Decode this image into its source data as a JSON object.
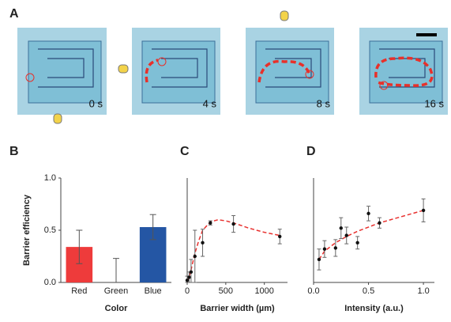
{
  "panel_a": {
    "label": "A",
    "frames": [
      "0 s",
      "4 s",
      "8 s",
      "16 s"
    ]
  },
  "chart_data": [
    {
      "type": "bar",
      "panel": "B",
      "ylabel": "Barrier efficiency",
      "xlabel": "Color",
      "categories": [
        "Red",
        "Green",
        "Blue"
      ],
      "values": [
        0.34,
        0,
        0.53
      ],
      "errors": [
        0.16,
        0.23,
        0.12
      ],
      "colors": [
        "#ee3b3b",
        "#2e9e3e",
        "#2456a4"
      ],
      "ylim": [
        0,
        1
      ],
      "yticks": [
        {
          "value": 0,
          "label": "0.0"
        },
        {
          "value": 0.5,
          "label": "0.5"
        },
        {
          "value": 1,
          "label": "1.0"
        }
      ]
    },
    {
      "type": "scatter",
      "panel": "C",
      "xlabel": "Barrier width (µm)",
      "x": [
        0,
        25,
        50,
        100,
        200,
        300,
        600,
        1200
      ],
      "values": [
        0.02,
        0.05,
        0.1,
        0.25,
        0.38,
        0.57,
        0.56,
        0.44
      ],
      "errors": [
        0.04,
        0.05,
        0.12,
        0.25,
        0.13,
        0.02,
        0.08,
        0.07
      ],
      "color": "#111111",
      "xlim": [
        0,
        1300
      ],
      "ylim": [
        0,
        1
      ],
      "xticks": [
        0,
        500,
        1000
      ],
      "fit": {
        "x": [
          0,
          50,
          100,
          150,
          200,
          300,
          400,
          500,
          600,
          800,
          1000,
          1200
        ],
        "values": [
          0.0,
          0.12,
          0.28,
          0.4,
          0.5,
          0.58,
          0.6,
          0.59,
          0.57,
          0.52,
          0.48,
          0.45
        ],
        "color": "#e8312f"
      }
    },
    {
      "type": "scatter",
      "panel": "D",
      "xlabel": "Intensity (a.u.)",
      "x": [
        0.05,
        0.1,
        0.2,
        0.25,
        0.3,
        0.4,
        0.5,
        0.6,
        1.0
      ],
      "values": [
        0.22,
        0.32,
        0.33,
        0.52,
        0.45,
        0.38,
        0.66,
        0.57,
        0.69
      ],
      "errors": [
        0.1,
        0.08,
        0.08,
        0.1,
        0.08,
        0.06,
        0.07,
        0.05,
        0.11
      ],
      "color": "#111111",
      "xlim": [
        0,
        1.1
      ],
      "ylim": [
        0,
        1
      ],
      "xticks": [
        {
          "value": 0,
          "label": "0.0"
        },
        {
          "value": 0.5,
          "label": "0.5"
        },
        {
          "value": 1,
          "label": "1.0"
        }
      ],
      "fit": {
        "x": [
          0.05,
          0.1,
          0.2,
          0.3,
          0.4,
          0.5,
          0.6,
          0.8,
          1.0
        ],
        "values": [
          0.22,
          0.3,
          0.38,
          0.44,
          0.49,
          0.53,
          0.57,
          0.63,
          0.69
        ],
        "color": "#e8312f"
      }
    }
  ]
}
